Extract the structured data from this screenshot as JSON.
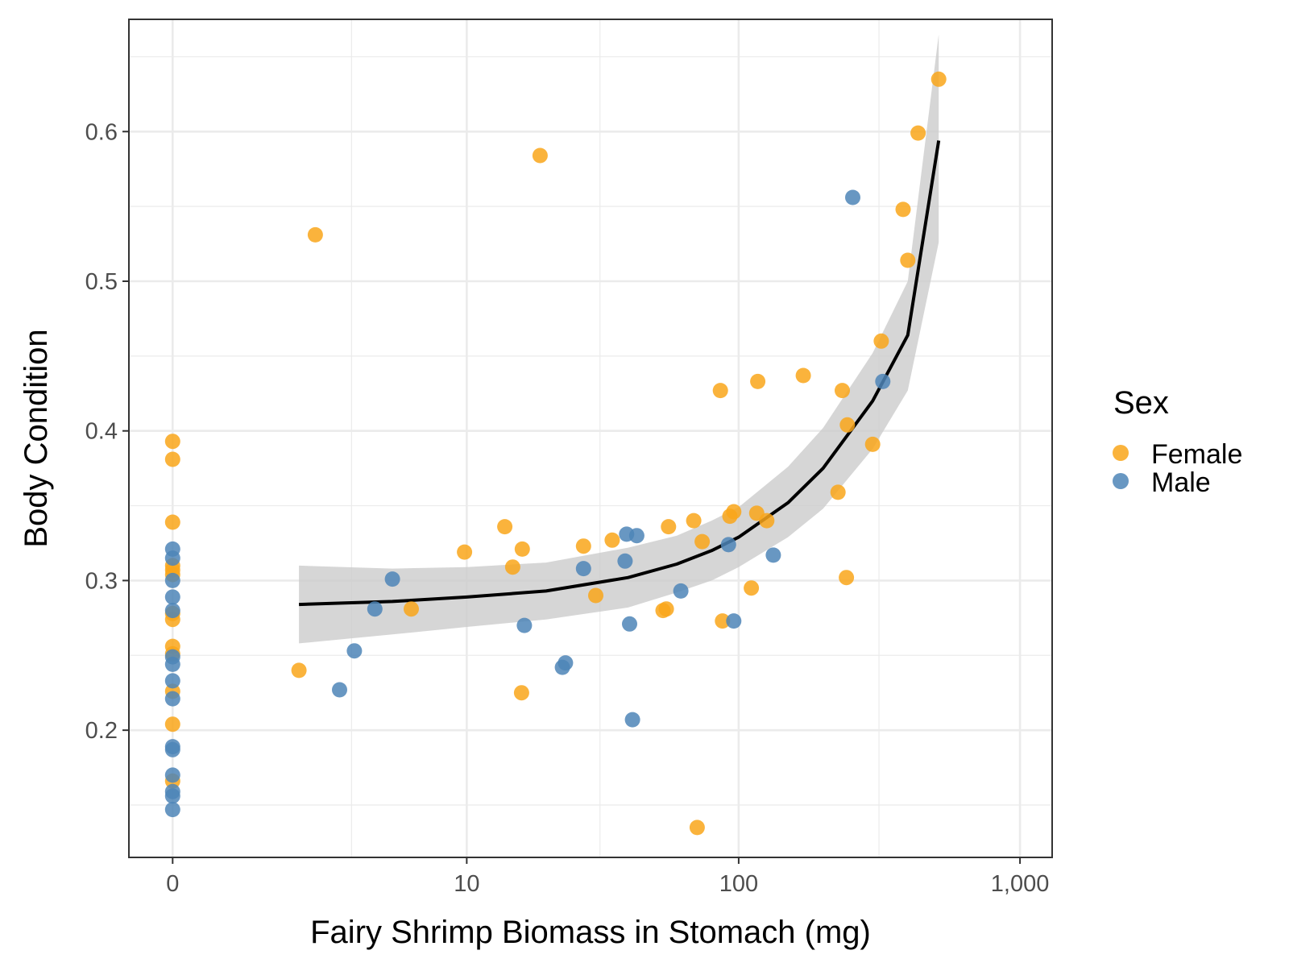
{
  "chart_data": {
    "type": "scatter",
    "title": "",
    "xlabel": "Fairy Shrimp Biomass in Stomach (mg)",
    "ylabel": "Body Condition",
    "x_scale": "pseudo_log10",
    "xlim": [
      -0.3,
      1300
    ],
    "ylim": [
      0.115,
      0.675
    ],
    "x_ticks": [
      0,
      10,
      100,
      1000
    ],
    "x_tick_labels": [
      "0",
      "10",
      "100",
      "1,000"
    ],
    "x_minor_ticks": [
      3.3,
      31.6,
      316
    ],
    "y_ticks": [
      0.2,
      0.3,
      0.4,
      0.5,
      0.6
    ],
    "y_tick_labels": [
      "0.2",
      "0.3",
      "0.4",
      "0.5",
      "0.6"
    ],
    "y_minor_ticks": [
      0.15,
      0.25,
      0.35,
      0.45,
      0.55,
      0.65
    ],
    "grid": true,
    "legend": {
      "title": "Sex",
      "position": "right",
      "entries": [
        {
          "label": "Female",
          "color": "#F9A61A"
        },
        {
          "label": "Male",
          "color": "#4E85B7"
        }
      ]
    },
    "series": [
      {
        "name": "Female",
        "color": "#F9A61A",
        "points": [
          [
            0,
            0.393
          ],
          [
            0,
            0.381
          ],
          [
            0,
            0.339
          ],
          [
            0,
            0.31
          ],
          [
            0,
            0.307
          ],
          [
            0,
            0.304
          ],
          [
            0,
            0.278
          ],
          [
            0,
            0.274
          ],
          [
            0,
            0.256
          ],
          [
            0,
            0.251
          ],
          [
            0,
            0.226
          ],
          [
            0,
            0.204
          ],
          [
            0,
            0.166
          ],
          [
            1.8,
            0.24
          ],
          [
            2.2,
            0.531
          ],
          [
            6,
            0.281
          ],
          [
            9.8,
            0.319
          ],
          [
            14,
            0.336
          ],
          [
            15,
            0.309
          ],
          [
            16.3,
            0.321
          ],
          [
            16.2,
            0.225
          ],
          [
            19,
            0.584
          ],
          [
            27.5,
            0.323
          ],
          [
            30.5,
            0.29
          ],
          [
            35,
            0.327
          ],
          [
            53.5,
            0.28
          ],
          [
            55,
            0.281
          ],
          [
            56,
            0.336
          ],
          [
            69,
            0.34
          ],
          [
            74,
            0.326
          ],
          [
            71,
            0.135
          ],
          [
            86,
            0.427
          ],
          [
            87.5,
            0.273
          ],
          [
            93,
            0.343
          ],
          [
            96,
            0.346
          ],
          [
            111,
            0.295
          ],
          [
            116,
            0.345
          ],
          [
            117,
            0.433
          ],
          [
            126,
            0.34
          ],
          [
            170,
            0.437
          ],
          [
            226,
            0.359
          ],
          [
            234,
            0.427
          ],
          [
            244,
            0.404
          ],
          [
            242,
            0.302
          ],
          [
            300,
            0.391
          ],
          [
            322,
            0.46
          ],
          [
            385,
            0.548
          ],
          [
            400,
            0.514
          ],
          [
            435,
            0.599
          ],
          [
            515,
            0.635
          ]
        ]
      },
      {
        "name": "Male",
        "color": "#4E85B7",
        "points": [
          [
            0,
            0.321
          ],
          [
            0,
            0.315
          ],
          [
            0,
            0.3
          ],
          [
            0,
            0.289
          ],
          [
            0,
            0.28
          ],
          [
            0,
            0.249
          ],
          [
            0,
            0.244
          ],
          [
            0,
            0.233
          ],
          [
            0,
            0.221
          ],
          [
            0,
            0.189
          ],
          [
            0,
            0.187
          ],
          [
            0,
            0.17
          ],
          [
            0,
            0.159
          ],
          [
            0,
            0.156
          ],
          [
            0,
            0.147
          ],
          [
            2.9,
            0.227
          ],
          [
            3.4,
            0.253
          ],
          [
            4.2,
            0.281
          ],
          [
            5.0,
            0.301
          ],
          [
            16.6,
            0.27
          ],
          [
            23,
            0.242
          ],
          [
            23.6,
            0.245
          ],
          [
            27.5,
            0.308
          ],
          [
            39,
            0.313
          ],
          [
            39.5,
            0.331
          ],
          [
            40.5,
            0.271
          ],
          [
            41.5,
            0.207
          ],
          [
            43,
            0.33
          ],
          [
            62,
            0.293
          ],
          [
            92,
            0.324
          ],
          [
            96,
            0.273
          ],
          [
            133,
            0.317
          ],
          [
            255,
            0.556
          ],
          [
            326,
            0.433
          ]
        ]
      }
    ],
    "fit": {
      "color": "#000000",
      "ribbon_color": "#CCCCCC",
      "x": [
        1.8,
        5,
        10,
        20,
        40,
        60,
        80,
        100,
        150,
        200,
        300,
        400,
        515
      ],
      "y": [
        0.284,
        0.286,
        0.289,
        0.293,
        0.302,
        0.311,
        0.32,
        0.329,
        0.352,
        0.375,
        0.42,
        0.464,
        0.594
      ],
      "lower": [
        0.258,
        0.264,
        0.269,
        0.274,
        0.282,
        0.292,
        0.3,
        0.309,
        0.329,
        0.348,
        0.388,
        0.427,
        0.526
      ],
      "upper": [
        0.31,
        0.308,
        0.309,
        0.312,
        0.322,
        0.33,
        0.34,
        0.349,
        0.376,
        0.402,
        0.452,
        0.5,
        0.665
      ]
    }
  }
}
